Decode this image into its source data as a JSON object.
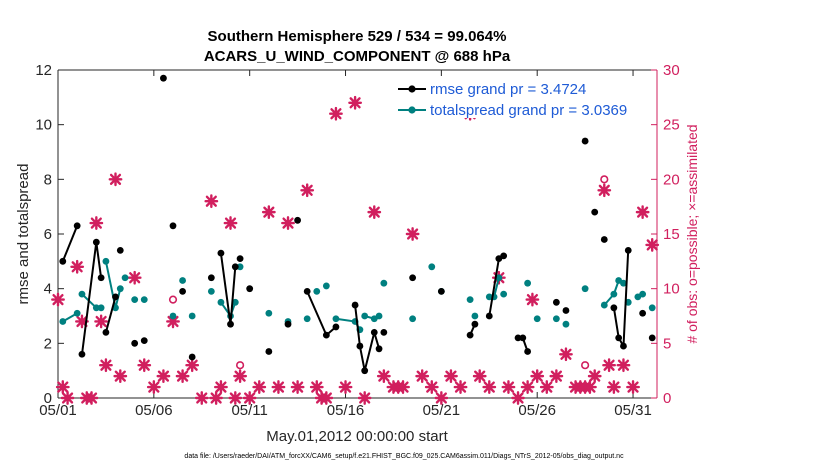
{
  "chart_data": {
    "type": "line",
    "title": "Southern Hemisphere 529 / 534 = 99.064%",
    "subtitle": "ACARS_U_WIND_COMPONENT @ 688 hPa",
    "xlabel": "May.01,2012 00:00:00 start",
    "ylabel": "rmse and totalspread",
    "ylabel_right": "# of obs: o=possible; ×=assimilated",
    "footer": "data file: /Users/raeder/DAI/ATM_forcXX/CAM6_setup/f.e21.FHIST_BGC.f09_025.CAM6assim.011/Diags_NTrS_2012-05/obs_diag_output.nc",
    "xlim": [
      0,
      31.25
    ],
    "ylim": [
      0,
      12
    ],
    "ylim_right": [
      0,
      30
    ],
    "grid": false,
    "legend_position": "top-right",
    "x_ticks": [
      0,
      5,
      10,
      15,
      20,
      25,
      30
    ],
    "x_tick_labels": [
      "05/01",
      "05/06",
      "05/11",
      "05/16",
      "05/21",
      "05/26",
      "05/31"
    ],
    "y_ticks": [
      0,
      2,
      4,
      6,
      8,
      10,
      12
    ],
    "y_ticks_right": [
      0,
      5,
      10,
      15,
      20,
      25,
      30
    ],
    "colors": {
      "rmse": "#000000",
      "spread": "#008080",
      "obs": "#d11f5e",
      "legend_text": "#1e5bd6",
      "axis": "#262626"
    },
    "legend": [
      "rmse grand pr = 3.4724",
      "totalspread grand pr = 3.0369"
    ],
    "rmse": {
      "name": "rmse grand pr = 3.4724",
      "points": [
        [
          0.25,
          5.0
        ],
        [
          1.0,
          6.3
        ],
        [
          1.25,
          1.6
        ],
        [
          2.0,
          5.7
        ],
        [
          2.25,
          4.4
        ],
        [
          2.5,
          2.4
        ],
        [
          3.0,
          3.7
        ],
        [
          3.25,
          5.4
        ],
        [
          4.0,
          2.0
        ],
        [
          4.5,
          2.1
        ],
        [
          5.5,
          11.7
        ],
        [
          6.0,
          6.3
        ],
        [
          6.5,
          3.9
        ],
        [
          7.0,
          1.5
        ],
        [
          8.0,
          4.4
        ],
        [
          8.5,
          5.3
        ],
        [
          9.0,
          2.7
        ],
        [
          9.25,
          4.8
        ],
        [
          9.5,
          5.1
        ],
        [
          10.0,
          4.0
        ],
        [
          11.0,
          1.7
        ],
        [
          12.0,
          2.7
        ],
        [
          12.5,
          6.5
        ],
        [
          13.0,
          3.9
        ],
        [
          14.0,
          2.3
        ],
        [
          14.5,
          2.6
        ],
        [
          15.5,
          3.4
        ],
        [
          15.75,
          1.9
        ],
        [
          16.0,
          1.0
        ],
        [
          16.5,
          2.4
        ],
        [
          16.75,
          1.8
        ],
        [
          17.0,
          2.4
        ],
        [
          18.5,
          4.4
        ],
        [
          20.0,
          3.9
        ],
        [
          21.5,
          2.3
        ],
        [
          21.75,
          2.7
        ],
        [
          22.5,
          3.0
        ],
        [
          23.0,
          5.1
        ],
        [
          23.25,
          5.2
        ],
        [
          24.0,
          2.2
        ],
        [
          24.25,
          2.2
        ],
        [
          24.5,
          1.7
        ],
        [
          26.0,
          3.5
        ],
        [
          26.5,
          3.2
        ],
        [
          27.5,
          9.4
        ],
        [
          28.0,
          6.8
        ],
        [
          28.5,
          5.8
        ],
        [
          29.0,
          3.3
        ],
        [
          29.25,
          2.2
        ],
        [
          29.5,
          1.9
        ],
        [
          29.75,
          5.4
        ],
        [
          30.5,
          3.1
        ],
        [
          31.0,
          2.2
        ]
      ],
      "segments": [
        [
          1,
          2
        ],
        [
          3,
          4,
          5
        ],
        [
          6,
          7
        ],
        [
          16,
          17,
          18
        ],
        [
          24,
          25,
          26
        ],
        [
          27,
          28,
          29,
          30,
          31
        ],
        [
          35,
          36
        ],
        [
          37,
          38,
          39
        ],
        [
          40,
          41,
          42
        ],
        [
          48,
          49,
          50,
          51
        ]
      ]
    },
    "spread": {
      "name": "totalspread grand pr = 3.0369",
      "points": [
        [
          0.25,
          2.8
        ],
        [
          1.0,
          3.1
        ],
        [
          1.25,
          3.8
        ],
        [
          2.0,
          3.3
        ],
        [
          2.25,
          3.3
        ],
        [
          2.5,
          5.0
        ],
        [
          3.0,
          3.3
        ],
        [
          3.25,
          4.0
        ],
        [
          3.5,
          4.4
        ],
        [
          4.0,
          3.6
        ],
        [
          4.5,
          3.6
        ],
        [
          6.0,
          3.0
        ],
        [
          6.5,
          4.3
        ],
        [
          7.0,
          3.0
        ],
        [
          8.0,
          3.9
        ],
        [
          8.5,
          3.5
        ],
        [
          9.0,
          3.0
        ],
        [
          9.25,
          3.5
        ],
        [
          9.5,
          4.8
        ],
        [
          11.0,
          3.1
        ],
        [
          12.0,
          2.8
        ],
        [
          13.0,
          2.9
        ],
        [
          13.5,
          3.9
        ],
        [
          14.0,
          4.1
        ],
        [
          14.5,
          2.9
        ],
        [
          15.5,
          2.8
        ],
        [
          15.75,
          2.5
        ],
        [
          16.0,
          3.0
        ],
        [
          16.5,
          2.9
        ],
        [
          16.75,
          3.0
        ],
        [
          17.0,
          4.2
        ],
        [
          18.5,
          2.9
        ],
        [
          19.5,
          4.8
        ],
        [
          20.0,
          3.9
        ],
        [
          21.5,
          3.6
        ],
        [
          21.75,
          3.0
        ],
        [
          22.5,
          3.7
        ],
        [
          22.75,
          3.7
        ],
        [
          23.0,
          4.4
        ],
        [
          23.25,
          3.8
        ],
        [
          24.5,
          4.2
        ],
        [
          25.0,
          2.9
        ],
        [
          26.0,
          2.9
        ],
        [
          26.5,
          2.7
        ],
        [
          27.5,
          4.0
        ],
        [
          28.5,
          3.4
        ],
        [
          29.0,
          3.8
        ],
        [
          29.25,
          4.3
        ],
        [
          29.5,
          4.2
        ],
        [
          29.75,
          3.5
        ],
        [
          30.25,
          3.7
        ],
        [
          30.5,
          3.8
        ],
        [
          31.0,
          3.3
        ]
      ],
      "segments": [
        [
          1,
          2
        ],
        [
          3,
          4,
          5
        ],
        [
          6,
          7,
          8
        ],
        [
          16,
          17,
          18
        ],
        [
          25,
          26,
          27
        ],
        [
          28,
          29,
          30
        ],
        [
          37,
          38,
          39
        ],
        [
          46,
          47,
          48
        ]
      ]
    },
    "obs_assimilated": {
      "marker": "x",
      "points": [
        [
          0,
          9
        ],
        [
          0.25,
          1
        ],
        [
          0.5,
          0
        ],
        [
          1.0,
          12
        ],
        [
          1.25,
          7
        ],
        [
          1.5,
          0
        ],
        [
          1.75,
          0
        ],
        [
          2.0,
          16
        ],
        [
          2.25,
          7
        ],
        [
          2.5,
          3
        ],
        [
          3.0,
          20
        ],
        [
          3.25,
          2
        ],
        [
          4.0,
          11
        ],
        [
          4.5,
          3
        ],
        [
          5.0,
          1
        ],
        [
          5.5,
          2
        ],
        [
          6.0,
          7
        ],
        [
          6.5,
          2
        ],
        [
          7.0,
          3
        ],
        [
          7.5,
          0
        ],
        [
          8.0,
          18
        ],
        [
          8.25,
          0
        ],
        [
          8.5,
          1
        ],
        [
          9.0,
          16
        ],
        [
          9.25,
          0
        ],
        [
          9.5,
          2
        ],
        [
          10.0,
          0
        ],
        [
          10.5,
          1
        ],
        [
          11.0,
          17
        ],
        [
          11.5,
          1
        ],
        [
          12.0,
          16
        ],
        [
          12.5,
          1
        ],
        [
          13.0,
          19
        ],
        [
          13.5,
          1
        ],
        [
          13.75,
          0
        ],
        [
          14.0,
          0
        ],
        [
          14.5,
          26
        ],
        [
          15.0,
          1
        ],
        [
          15.5,
          27
        ],
        [
          16.0,
          0
        ],
        [
          16.5,
          17
        ],
        [
          17.0,
          2
        ],
        [
          17.5,
          1
        ],
        [
          17.75,
          1
        ],
        [
          18.0,
          1
        ],
        [
          18.5,
          15
        ],
        [
          19.0,
          2
        ],
        [
          19.5,
          1
        ],
        [
          20.0,
          0
        ],
        [
          20.5,
          2
        ],
        [
          21.0,
          1
        ],
        [
          21.5,
          26
        ],
        [
          22.0,
          2
        ],
        [
          22.5,
          1
        ],
        [
          23.0,
          11
        ],
        [
          23.5,
          1
        ],
        [
          24.0,
          0
        ],
        [
          24.5,
          1
        ],
        [
          24.75,
          9
        ],
        [
          25.0,
          2
        ],
        [
          25.5,
          1
        ],
        [
          26.0,
          2
        ],
        [
          26.5,
          4
        ],
        [
          27.0,
          1
        ],
        [
          27.25,
          1
        ],
        [
          27.5,
          1
        ],
        [
          27.75,
          1
        ],
        [
          28.0,
          2
        ],
        [
          28.5,
          19
        ],
        [
          28.75,
          3
        ],
        [
          29.0,
          1
        ],
        [
          29.5,
          3
        ],
        [
          30.0,
          1
        ],
        [
          30.5,
          17
        ],
        [
          31.0,
          14
        ]
      ]
    },
    "obs_possible": {
      "marker": "o",
      "points": [
        [
          6.0,
          9
        ],
        [
          9.5,
          3
        ],
        [
          27.5,
          3
        ],
        [
          28.5,
          20
        ]
      ]
    }
  }
}
